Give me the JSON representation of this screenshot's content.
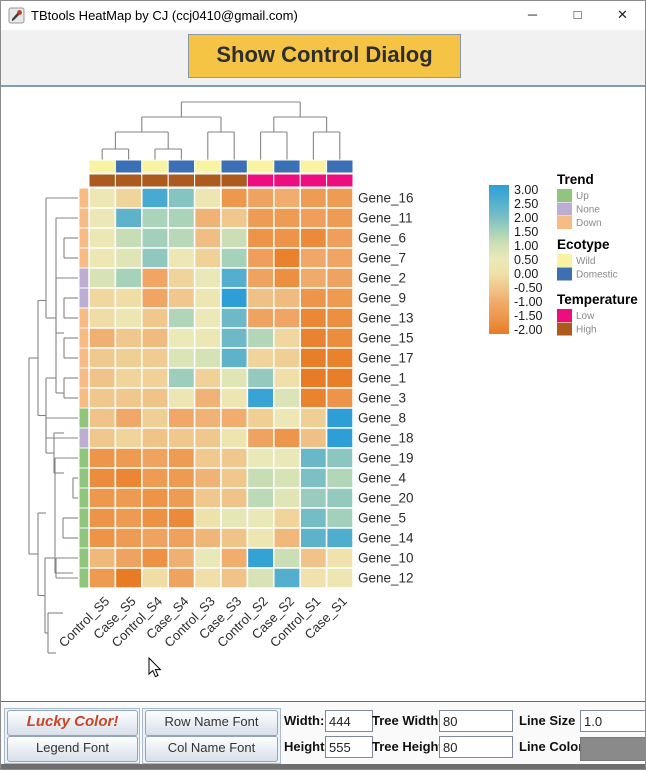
{
  "window": {
    "title": "TBtools HeatMap by CJ (ccj0410@gmail.com)",
    "minimize_glyph": "─",
    "maximize_glyph": "□",
    "close_glyph": "✕"
  },
  "toolbar": {
    "show_control_dialog": "Show Control Dialog"
  },
  "heatmap": {
    "genes": [
      "Gene_16",
      "Gene_11",
      "Gene_6",
      "Gene_7",
      "Gene_2",
      "Gene_9",
      "Gene_13",
      "Gene_15",
      "Gene_17",
      "Gene_1",
      "Gene_3",
      "Gene_8",
      "Gene_18",
      "Gene_19",
      "Gene_4",
      "Gene_20",
      "Gene_5",
      "Gene_14",
      "Gene_10",
      "Gene_12"
    ],
    "samples": [
      "Control_S5",
      "Case_S5",
      "Control_S4",
      "Case_S4",
      "Control_S3",
      "Case_S3",
      "Control_S2",
      "Case_S2",
      "Control_S1",
      "Case_S1"
    ],
    "values": [
      [
        0.4,
        -0.2,
        2.6,
        1.8,
        0.3,
        -1.4,
        -1.1,
        -0.9,
        -1.3,
        -1.3
      ],
      [
        0.4,
        2.3,
        1.4,
        1.4,
        -0.8,
        -0.45,
        -1.3,
        -1.3,
        -1.2,
        -1.3
      ],
      [
        0.45,
        1.1,
        1.5,
        1.25,
        -0.6,
        1.05,
        -1.5,
        -1.5,
        -1.7,
        -1.2
      ],
      [
        0.4,
        0.7,
        1.7,
        0.4,
        -0.25,
        1.45,
        -1.2,
        -1.9,
        -1.0,
        -1.05
      ],
      [
        0.85,
        1.45,
        -1.05,
        -0.2,
        0.55,
        2.45,
        -1.1,
        -1.6,
        -0.95,
        -1.1
      ],
      [
        -0.15,
        -0.05,
        -1.05,
        -0.45,
        0.35,
        3.0,
        -0.55,
        -0.65,
        -1.45,
        -1.35
      ],
      [
        -0.05,
        0.3,
        -0.45,
        1.35,
        0.5,
        2.1,
        -1.1,
        -1.05,
        -1.75,
        -1.6
      ],
      [
        -0.85,
        -0.45,
        -0.65,
        0.5,
        0.45,
        2.1,
        1.3,
        -0.15,
        -1.85,
        -1.65
      ],
      [
        -0.4,
        -0.3,
        -0.35,
        0.8,
        0.9,
        2.3,
        -0.2,
        -0.3,
        -1.95,
        -1.9
      ],
      [
        -0.5,
        -0.2,
        -0.25,
        1.55,
        -0.25,
        0.7,
        1.65,
        0.0,
        -2.0,
        -1.95
      ],
      [
        -0.45,
        -0.45,
        -0.5,
        0.3,
        -0.8,
        0.3,
        2.85,
        0.8,
        -1.85,
        -1.5
      ],
      [
        -0.5,
        -1.0,
        -0.3,
        -1.0,
        -0.8,
        -0.9,
        -0.3,
        0.4,
        -0.3,
        3.0
      ],
      [
        -0.45,
        -0.2,
        -0.5,
        -0.45,
        -0.45,
        0.25,
        -1.1,
        -1.45,
        -0.55,
        3.0
      ],
      [
        -1.45,
        -1.35,
        -1.1,
        -1.3,
        -0.4,
        -0.45,
        0.55,
        0.55,
        2.15,
        1.75
      ],
      [
        -1.65,
        -1.8,
        -1.3,
        -1.35,
        -0.8,
        -0.45,
        1.1,
        0.85,
        1.9,
        1.3
      ],
      [
        -1.4,
        -1.35,
        -1.5,
        -1.3,
        -0.45,
        -0.5,
        1.2,
        0.7,
        1.6,
        1.65
      ],
      [
        -1.5,
        -1.35,
        -1.55,
        -1.7,
        0.1,
        0.6,
        0.55,
        -0.2,
        2.0,
        1.5
      ],
      [
        -1.5,
        -1.3,
        -1.1,
        -1.15,
        -0.75,
        -0.5,
        0.3,
        -0.7,
        2.3,
        2.5
      ],
      [
        -0.7,
        -1.1,
        -1.55,
        -0.85,
        0.55,
        -0.9,
        2.9,
        1.05,
        -0.5,
        0.15
      ],
      [
        -1.35,
        -2.0,
        -0.05,
        -1.1,
        0.0,
        -0.5,
        0.85,
        2.45,
        0.15,
        0.35
      ]
    ],
    "row_trend": [
      "Down",
      "Down",
      "Down",
      "Down",
      "None",
      "None",
      "Down",
      "Down",
      "Down",
      "Down",
      "Down",
      "Up",
      "None",
      "Up",
      "Up",
      "Up",
      "Up",
      "Up",
      "Up",
      "Up"
    ],
    "col_ecotype": [
      "Wild",
      "Domestic",
      "Wild",
      "Domestic",
      "Wild",
      "Domestic",
      "Wild",
      "Domestic",
      "Wild",
      "Domestic"
    ],
    "col_temperature": [
      "High",
      "High",
      "High",
      "High",
      "High",
      "High",
      "Low",
      "Low",
      "Low",
      "Low"
    ]
  },
  "colors": {
    "trend": {
      "Up": "#90c57e",
      "None": "#bcaed3",
      "Down": "#f7bb86"
    },
    "ecotype": {
      "Wild": "#f8f3a2",
      "Domestic": "#3b6fb6"
    },
    "temperature": {
      "Low": "#ee0d7e",
      "High": "#ac5a1e"
    },
    "colormap": [
      {
        "v": -2.0,
        "c": "#e87c26"
      },
      {
        "v": -1.5,
        "c": "#ed9448"
      },
      {
        "v": -1.0,
        "c": "#f0a767"
      },
      {
        "v": -0.5,
        "c": "#f0c489"
      },
      {
        "v": 0.0,
        "c": "#f0dfa8"
      },
      {
        "v": 0.5,
        "c": "#ebe9b8"
      },
      {
        "v": 1.0,
        "c": "#cfe0b4"
      },
      {
        "v": 1.5,
        "c": "#a2d0bb"
      },
      {
        "v": 2.0,
        "c": "#74bcc6"
      },
      {
        "v": 2.5,
        "c": "#4fadce"
      },
      {
        "v": 3.0,
        "c": "#2e9fd6"
      }
    ],
    "dendrogram_line": "#848484",
    "button_accent": "#f6c445",
    "line_color_value": "#8a8a8a"
  },
  "scale_legend": {
    "ticks": [
      "3.00",
      "2.50",
      "2.00",
      "1.50",
      "1.00",
      "0.50",
      "0.00",
      "-0.50",
      "-1.00",
      "-1.50",
      "-2.00"
    ]
  },
  "legends": [
    {
      "title": "Trend",
      "items": [
        {
          "label": "Up",
          "color": "#90c57e"
        },
        {
          "label": "None",
          "color": "#bcaed3"
        },
        {
          "label": "Down",
          "color": "#f7bb86"
        }
      ]
    },
    {
      "title": "Ecotype",
      "items": [
        {
          "label": "Wild",
          "color": "#f8f3a2"
        },
        {
          "label": "Domestic",
          "color": "#3b6fb6"
        }
      ]
    },
    {
      "title": "Temperature",
      "items": [
        {
          "label": "Low",
          "color": "#ee0d7e"
        },
        {
          "label": "High",
          "color": "#ac5a1e"
        }
      ]
    }
  ],
  "controls": {
    "lucky_color": "Lucky Color!",
    "legend_font": "Legend Font",
    "row_name_font": "Row Name Font",
    "col_name_font": "Col Name Font",
    "width_label": "Width:",
    "width_value": "444",
    "height_label": "Height:",
    "height_value": "555",
    "tree_width_label": "Tree Width:",
    "tree_width_value": "80",
    "tree_height_label": "Tree Height:",
    "tree_height_value": "80",
    "line_size_label": "Line Size :",
    "line_size_value": "1.0",
    "line_color_label": "Line Color:"
  }
}
